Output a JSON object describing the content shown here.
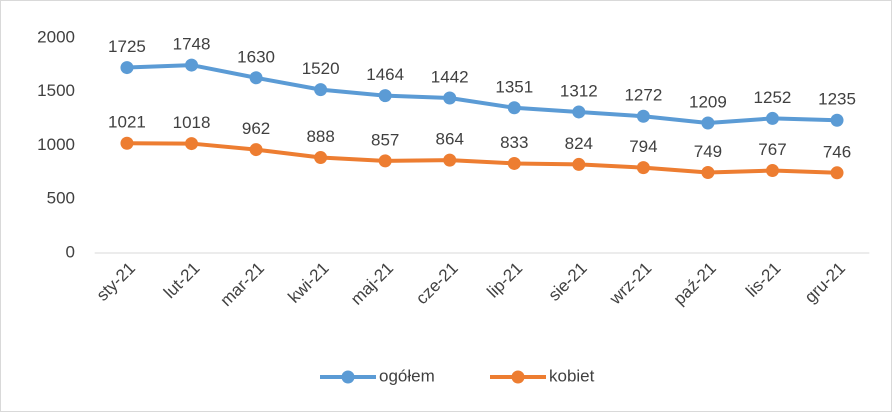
{
  "chart_data": {
    "type": "line",
    "categories": [
      "sty-21",
      "lut-21",
      "mar-21",
      "kwi-21",
      "maj-21",
      "cze-21",
      "lip-21",
      "sie-21",
      "wrz-21",
      "paź-21",
      "lis-21",
      "gru-21"
    ],
    "series": [
      {
        "name": "ogółem",
        "color": "#5b9bd5",
        "values": [
          1725,
          1748,
          1630,
          1520,
          1464,
          1442,
          1351,
          1312,
          1272,
          1209,
          1252,
          1235
        ]
      },
      {
        "name": "kobiet",
        "color": "#ed7d31",
        "values": [
          1021,
          1018,
          962,
          888,
          857,
          864,
          833,
          824,
          794,
          749,
          767,
          746
        ]
      }
    ],
    "ylim": [
      0,
      2000
    ],
    "yticks": [
      0,
      500,
      1000,
      1500,
      2000
    ],
    "grid": false,
    "legend": "bottom",
    "data_labels": true
  }
}
